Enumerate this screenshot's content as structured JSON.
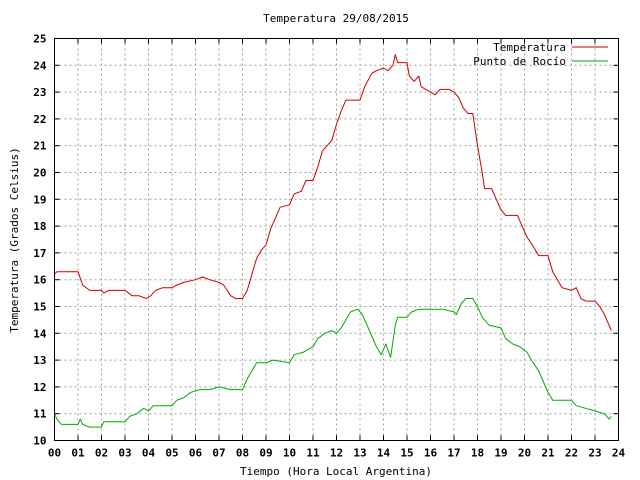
{
  "chart_data": {
    "type": "line",
    "title": "Temperatura 29/08/2015",
    "xlabel": "Tiempo (Hora Local Argentina)",
    "ylabel": "Temperatura (Grados Celsius)",
    "xlim": [
      0,
      24
    ],
    "ylim": [
      10,
      25
    ],
    "x_ticks": [
      "00",
      "01",
      "02",
      "03",
      "04",
      "05",
      "06",
      "07",
      "08",
      "09",
      "10",
      "11",
      "12",
      "13",
      "14",
      "15",
      "16",
      "17",
      "18",
      "19",
      "20",
      "21",
      "22",
      "23",
      "24"
    ],
    "y_ticks": [
      "10",
      "11",
      "12",
      "13",
      "14",
      "15",
      "16",
      "17",
      "18",
      "19",
      "20",
      "21",
      "22",
      "23",
      "24",
      "25"
    ],
    "grid": true,
    "legend_position": "top-right",
    "series": [
      {
        "name": "Temperatura",
        "color": "#cc0000",
        "points": [
          [
            0.0,
            16.2
          ],
          [
            0.1,
            16.3
          ],
          [
            0.5,
            16.3
          ],
          [
            1.0,
            16.3
          ],
          [
            1.2,
            15.8
          ],
          [
            1.5,
            15.6
          ],
          [
            2.0,
            15.6
          ],
          [
            2.1,
            15.5
          ],
          [
            2.3,
            15.6
          ],
          [
            3.0,
            15.6
          ],
          [
            3.3,
            15.4
          ],
          [
            3.6,
            15.4
          ],
          [
            3.9,
            15.3
          ],
          [
            4.1,
            15.4
          ],
          [
            4.3,
            15.6
          ],
          [
            4.6,
            15.7
          ],
          [
            5.0,
            15.7
          ],
          [
            5.2,
            15.8
          ],
          [
            5.5,
            15.9
          ],
          [
            6.0,
            16.0
          ],
          [
            6.3,
            16.1
          ],
          [
            6.6,
            16.0
          ],
          [
            7.0,
            15.9
          ],
          [
            7.2,
            15.8
          ],
          [
            7.5,
            15.4
          ],
          [
            7.7,
            15.3
          ],
          [
            8.0,
            15.3
          ],
          [
            8.2,
            15.6
          ],
          [
            8.4,
            16.2
          ],
          [
            8.6,
            16.8
          ],
          [
            8.8,
            17.1
          ],
          [
            9.0,
            17.3
          ],
          [
            9.2,
            17.9
          ],
          [
            9.5,
            18.5
          ],
          [
            9.6,
            18.7
          ],
          [
            10.0,
            18.8
          ],
          [
            10.2,
            19.2
          ],
          [
            10.5,
            19.3
          ],
          [
            10.7,
            19.7
          ],
          [
            11.0,
            19.7
          ],
          [
            11.2,
            20.2
          ],
          [
            11.4,
            20.8
          ],
          [
            11.6,
            21.0
          ],
          [
            11.8,
            21.2
          ],
          [
            12.0,
            21.8
          ],
          [
            12.2,
            22.3
          ],
          [
            12.4,
            22.7
          ],
          [
            13.0,
            22.7
          ],
          [
            13.2,
            23.2
          ],
          [
            13.5,
            23.7
          ],
          [
            13.7,
            23.8
          ],
          [
            14.0,
            23.9
          ],
          [
            14.2,
            23.8
          ],
          [
            14.4,
            24.0
          ],
          [
            14.5,
            24.4
          ],
          [
            14.6,
            24.1
          ],
          [
            15.0,
            24.1
          ],
          [
            15.1,
            23.6
          ],
          [
            15.3,
            23.4
          ],
          [
            15.5,
            23.6
          ],
          [
            15.6,
            23.2
          ],
          [
            15.8,
            23.1
          ],
          [
            16.0,
            23.0
          ],
          [
            16.2,
            22.9
          ],
          [
            16.4,
            23.1
          ],
          [
            16.8,
            23.1
          ],
          [
            17.0,
            23.0
          ],
          [
            17.2,
            22.8
          ],
          [
            17.4,
            22.4
          ],
          [
            17.6,
            22.2
          ],
          [
            17.8,
            22.2
          ],
          [
            18.0,
            21.0
          ],
          [
            18.2,
            20.0
          ],
          [
            18.3,
            19.4
          ],
          [
            18.6,
            19.4
          ],
          [
            18.8,
            19.0
          ],
          [
            19.0,
            18.6
          ],
          [
            19.2,
            18.4
          ],
          [
            19.7,
            18.4
          ],
          [
            19.9,
            18.0
          ],
          [
            20.1,
            17.6
          ],
          [
            20.4,
            17.2
          ],
          [
            20.6,
            16.9
          ],
          [
            21.0,
            16.9
          ],
          [
            21.2,
            16.3
          ],
          [
            21.4,
            16.0
          ],
          [
            21.6,
            15.7
          ],
          [
            22.0,
            15.6
          ],
          [
            22.2,
            15.7
          ],
          [
            22.4,
            15.3
          ],
          [
            22.6,
            15.2
          ],
          [
            23.0,
            15.2
          ],
          [
            23.2,
            15.0
          ],
          [
            23.4,
            14.7
          ],
          [
            23.6,
            14.3
          ],
          [
            23.7,
            14.1
          ]
        ]
      },
      {
        "name": "Punto de Rocío",
        "color": "#00aa00",
        "points": [
          [
            0.0,
            11.0
          ],
          [
            0.1,
            10.8
          ],
          [
            0.3,
            10.6
          ],
          [
            1.0,
            10.6
          ],
          [
            1.1,
            10.8
          ],
          [
            1.2,
            10.6
          ],
          [
            1.5,
            10.5
          ],
          [
            2.0,
            10.5
          ],
          [
            2.1,
            10.7
          ],
          [
            3.0,
            10.7
          ],
          [
            3.2,
            10.9
          ],
          [
            3.5,
            11.0
          ],
          [
            3.8,
            11.2
          ],
          [
            4.0,
            11.1
          ],
          [
            4.2,
            11.3
          ],
          [
            5.0,
            11.3
          ],
          [
            5.2,
            11.5
          ],
          [
            5.5,
            11.6
          ],
          [
            5.8,
            11.8
          ],
          [
            6.2,
            11.9
          ],
          [
            6.6,
            11.9
          ],
          [
            7.0,
            12.0
          ],
          [
            7.5,
            11.9
          ],
          [
            8.0,
            11.9
          ],
          [
            8.2,
            12.3
          ],
          [
            8.4,
            12.6
          ],
          [
            8.6,
            12.9
          ],
          [
            9.0,
            12.9
          ],
          [
            9.3,
            13.0
          ],
          [
            10.0,
            12.9
          ],
          [
            10.2,
            13.2
          ],
          [
            10.6,
            13.3
          ],
          [
            11.0,
            13.5
          ],
          [
            11.2,
            13.8
          ],
          [
            11.5,
            14.0
          ],
          [
            11.8,
            14.1
          ],
          [
            12.0,
            14.0
          ],
          [
            12.2,
            14.2
          ],
          [
            12.4,
            14.5
          ],
          [
            12.6,
            14.8
          ],
          [
            12.9,
            14.9
          ],
          [
            13.1,
            14.7
          ],
          [
            13.3,
            14.3
          ],
          [
            13.5,
            13.9
          ],
          [
            13.7,
            13.5
          ],
          [
            13.9,
            13.2
          ],
          [
            14.1,
            13.6
          ],
          [
            14.3,
            13.1
          ],
          [
            14.5,
            14.3
          ],
          [
            14.6,
            14.6
          ],
          [
            15.0,
            14.6
          ],
          [
            15.2,
            14.8
          ],
          [
            15.5,
            14.9
          ],
          [
            16.0,
            14.9
          ],
          [
            16.5,
            14.9
          ],
          [
            17.0,
            14.8
          ],
          [
            17.1,
            14.7
          ],
          [
            17.3,
            15.1
          ],
          [
            17.5,
            15.3
          ],
          [
            17.8,
            15.3
          ],
          [
            18.0,
            15.0
          ],
          [
            18.2,
            14.6
          ],
          [
            18.5,
            14.3
          ],
          [
            19.0,
            14.2
          ],
          [
            19.2,
            13.8
          ],
          [
            19.5,
            13.6
          ],
          [
            19.8,
            13.5
          ],
          [
            20.1,
            13.3
          ],
          [
            20.3,
            13.0
          ],
          [
            20.6,
            12.6
          ],
          [
            20.8,
            12.2
          ],
          [
            21.0,
            11.8
          ],
          [
            21.2,
            11.5
          ],
          [
            21.5,
            11.5
          ],
          [
            22.0,
            11.5
          ],
          [
            22.2,
            11.3
          ],
          [
            22.6,
            11.2
          ],
          [
            23.0,
            11.1
          ],
          [
            23.4,
            11.0
          ],
          [
            23.6,
            10.8
          ],
          [
            23.7,
            10.9
          ]
        ]
      }
    ]
  }
}
